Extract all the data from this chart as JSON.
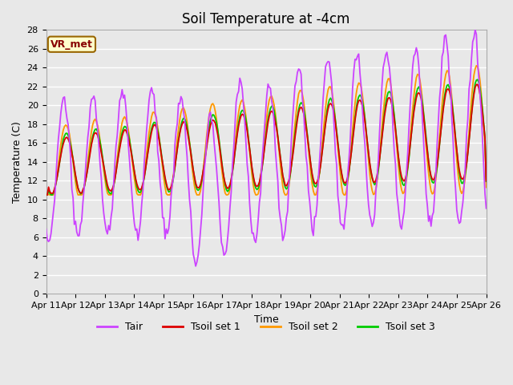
{
  "title": "Soil Temperature at -4cm",
  "xlabel": "Time",
  "ylabel": "Temperature (C)",
  "ylim": [
    0,
    28
  ],
  "xlim": [
    0,
    15
  ],
  "xtick_positions": [
    0,
    1,
    2,
    3,
    4,
    5,
    6,
    7,
    8,
    9,
    10,
    11,
    12,
    13,
    14,
    15
  ],
  "xtick_labels": [
    "Apr 11",
    "Apr 12",
    "Apr 13",
    "Apr 14",
    "Apr 15",
    "Apr 16",
    "Apr 17",
    "Apr 18",
    "Apr 19",
    "Apr 20",
    "Apr 21",
    "Apr 22",
    "Apr 23",
    "Apr 24",
    "Apr 25",
    "Apr 26"
  ],
  "ytick_positions": [
    0,
    2,
    4,
    6,
    8,
    10,
    12,
    14,
    16,
    18,
    20,
    22,
    24,
    26,
    28
  ],
  "line_colors": [
    "#cc44ff",
    "#dd0000",
    "#ff9900",
    "#00cc00"
  ],
  "line_labels": [
    "Tair",
    "Tsoil set 1",
    "Tsoil set 2",
    "Tsoil set 3"
  ],
  "background_color": "#e8e8e8",
  "plot_bg_color": "#e8e8e8",
  "annotation_text": "VR_met",
  "annotation_facecolor": "#ffffcc",
  "annotation_edgecolor": "#996600",
  "title_fontsize": 12,
  "axis_label_fontsize": 9,
  "tick_fontsize": 8,
  "legend_fontsize": 9
}
